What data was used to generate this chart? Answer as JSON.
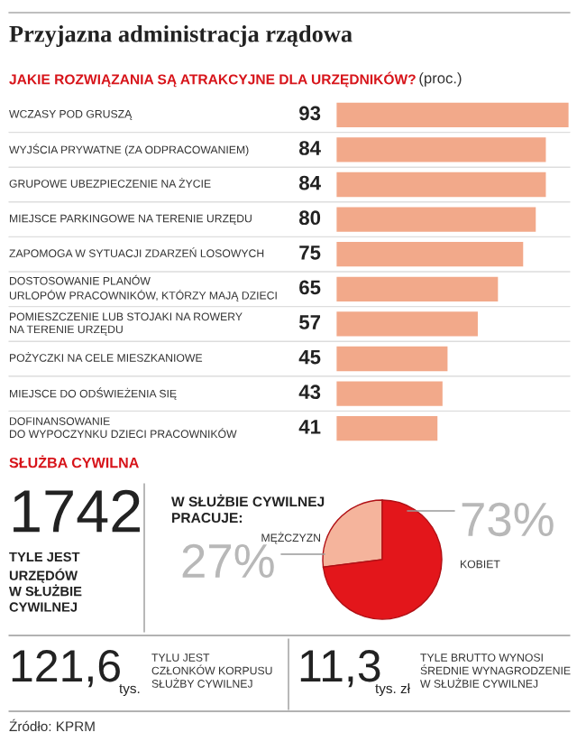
{
  "chart_data": [
    {
      "type": "bar",
      "orientation": "horizontal",
      "title": "Przyjazna administracja rządowa",
      "subtitle": "JAKIE ROZWIĄZANIA SĄ ATRAKCYJNE DLA URZĘDNIKÓW?",
      "xlabel": "(proc.)",
      "categories": [
        "WCZASY POD GRUSZĄ",
        "WYJŚCIA PRYWATNE (ZA ODPRACOWANIEM)",
        "GRUPOWE UBEZPIECZENIE NA ŻYCIE",
        "MIEJSCE PARKINGOWE NA TERENIE URZĘDU",
        "ZAPOMOGA W SYTUACJI ZDARZEŃ LOSOWYCH",
        "DOSTOSOWANIE PLANÓW\nURLOPÓW PRACOWNIKÓW, KTÓRZY MAJĄ DZIECI",
        "POMIESZCZENIE LUB STOJAKI NA ROWERY\nNA TERENIE URZĘDU",
        "POŻYCZKI NA CELE MIESZKANIOWE",
        "MIEJSCE DO ODŚWIEŻENIA SIĘ",
        "DOFINANSOWANIE\nDO WYPOCZYNKU DZIECI PRACOWNIKÓW"
      ],
      "values": [
        93,
        84,
        84,
        80,
        75,
        65,
        57,
        45,
        43,
        41
      ],
      "color": "#f2a98a",
      "data_labels": true
    },
    {
      "type": "other",
      "title": "SŁUŻBA CYWILNA",
      "annotations": [
        "1742",
        "TYLE JEST\nURZĘDÓW\nW SŁUŻBIE\nCYWILNEJ",
        "121,6",
        "tys.",
        "TYLU JEST\nCZŁONKÓW KORPUSU\nSŁUŻBY CYWILNEJ",
        "11,3",
        "tys. zł",
        "TYLE BRUTTO WYNOSI\nŚREDNIE WYNAGRODZENIE\nW SŁUŻBIE CYWILNEJ",
        "Źródło: KPRM"
      ]
    },
    {
      "type": "pie",
      "title": "W SŁUŻBIE CYWILNEJ\nPRACUJE:",
      "categories": [
        "MĘŻCZYZN",
        "KOBIET"
      ],
      "values": [
        27,
        73
      ],
      "value_labels": [
        "27%",
        "73%"
      ],
      "colors": [
        "#f5b49c",
        "#e3161b"
      ]
    }
  ]
}
